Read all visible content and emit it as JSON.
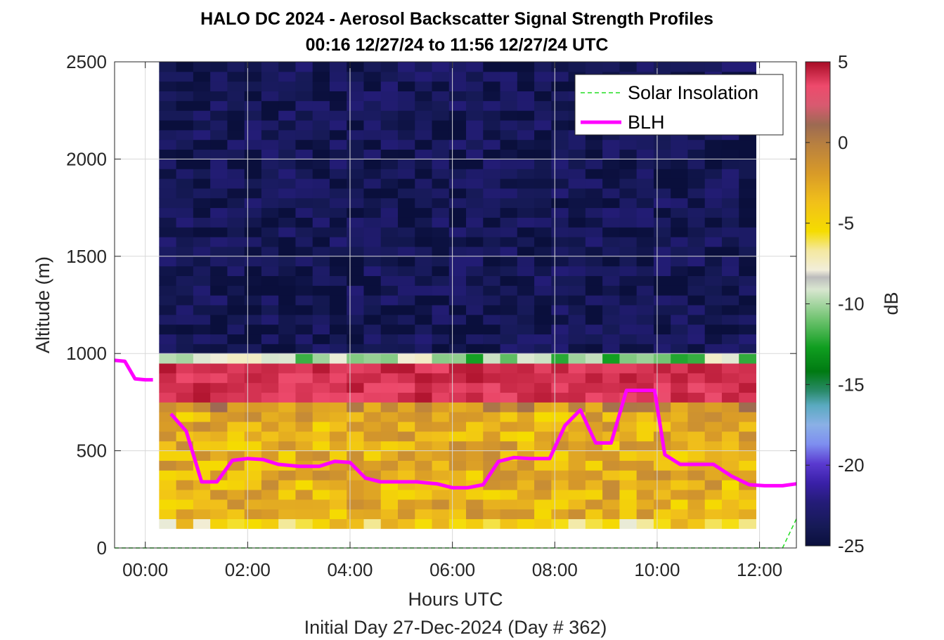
{
  "chart_data": {
    "type": "heatmap",
    "title": "HALO DC 2024 - Aerosol Backscatter Signal Strength Profiles",
    "subtitle": "00:16 12/27/24 to 11:56 12/27/24  UTC",
    "xlabel": "Hours UTC",
    "xlabel2": "Initial Day 27-Dec-2024 (Day # 362)",
    "ylabel": "Altitude (m)",
    "colorbar_label": "dB",
    "xlim": [
      -0.6,
      12.72
    ],
    "ylim": [
      0,
      2500
    ],
    "x_ticks": [
      0,
      2,
      4,
      6,
      8,
      10,
      12
    ],
    "x_tick_labels": [
      "00:00",
      "02:00",
      "04:00",
      "06:00",
      "08:00",
      "10:00",
      "12:00"
    ],
    "y_ticks": [
      0,
      500,
      1000,
      1500,
      2000,
      2500
    ],
    "y_tick_labels": [
      "0",
      "500",
      "1000",
      "1500",
      "2000",
      "2500"
    ],
    "colorbar_range": [
      -25,
      5
    ],
    "colorbar_ticks": [
      5,
      0,
      -5,
      -10,
      -15,
      -20,
      -25
    ],
    "colorbar_tick_labels": [
      "5",
      "0",
      "-5",
      "-10",
      "-15",
      "-20",
      "-25"
    ],
    "grid": true,
    "legend_position": "top-right",
    "heatmap": {
      "x_start_hours": 0.27,
      "x_end_hours": 11.93,
      "columns": 35,
      "y_start_m": 100,
      "y_end_m": 2500,
      "row_height_m": 50,
      "layers": [
        {
          "from_m": 100,
          "to_m": 150,
          "db": -6.5
        },
        {
          "from_m": 150,
          "to_m": 700,
          "db": -4.5
        },
        {
          "from_m": 700,
          "to_m": 750,
          "db": -2.5
        },
        {
          "from_m": 750,
          "to_m": 950,
          "db": 3.5
        },
        {
          "from_m": 950,
          "to_m": 1000,
          "db": -10.5
        },
        {
          "from_m": 1000,
          "to_m": 2500,
          "db": -24.0
        }
      ]
    },
    "series": [
      {
        "name": "Solar Insolation",
        "style": "dashed",
        "color": "#22dd22",
        "x": [
          -0.6,
          12.45,
          12.72
        ],
        "y": [
          0,
          0,
          150
        ]
      },
      {
        "name": "BLH",
        "style": "solid",
        "color": "#ff00ff",
        "segments": [
          {
            "x": [
              -0.6,
              -0.4,
              -0.2,
              0.0,
              0.15
            ],
            "y": [
              965,
              960,
              870,
              865,
              865
            ]
          },
          {
            "x": [
              0.5,
              0.8,
              1.1,
              1.4,
              1.7,
              2.0,
              2.3,
              2.6,
              3.0,
              3.4,
              3.7,
              4.0,
              4.3,
              4.6,
              5.0,
              5.3,
              5.7,
              6.0,
              6.3,
              6.6,
              6.9,
              7.2,
              7.5,
              7.9,
              8.2,
              8.5,
              8.8,
              9.1,
              9.4,
              9.65,
              9.95,
              10.15,
              10.45,
              10.8,
              11.1,
              11.45,
              11.8,
              12.1,
              12.45,
              12.72
            ],
            "y": [
              690,
              600,
              340,
              340,
              450,
              460,
              455,
              430,
              420,
              420,
              445,
              440,
              360,
              340,
              340,
              340,
              330,
              310,
              310,
              325,
              445,
              465,
              460,
              460,
              630,
              710,
              540,
              540,
              810,
              810,
              810,
              480,
              430,
              430,
              430,
              370,
              325,
              320,
              320,
              330
            ]
          }
        ]
      }
    ]
  }
}
